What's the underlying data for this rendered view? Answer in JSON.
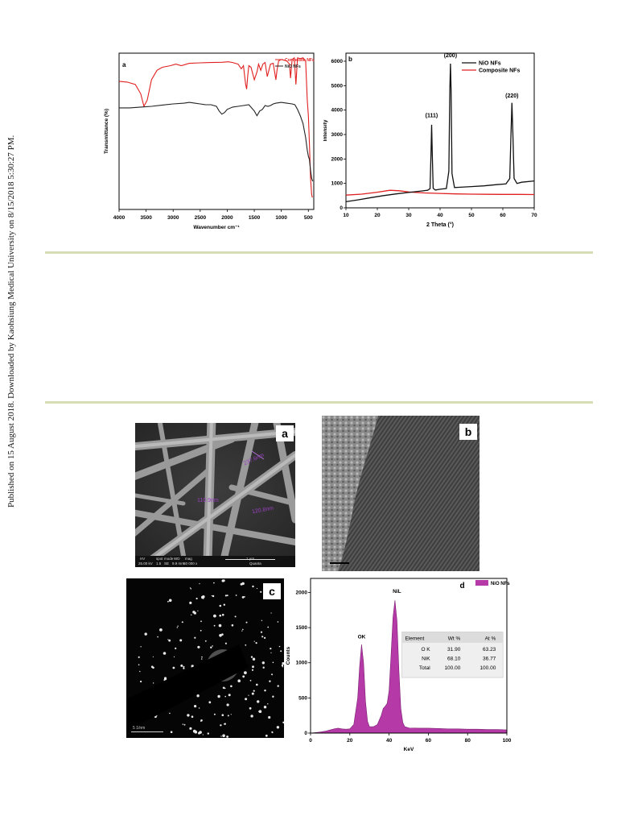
{
  "side_note": "Published on 15 August 2018. Downloaded by Kaohsiung Medical University on 8/15/2018 5:30:27 PM.",
  "panels": {
    "a": "a",
    "b": "b",
    "sem": "a",
    "hrtem": "b",
    "saed": "c",
    "edx": "d"
  },
  "chart_data": [
    {
      "type": "line",
      "panel": "a",
      "xlabel": "Wavenumber cm⁻¹",
      "ylabel": "Transmittance (%)",
      "xlim": [
        4000,
        400
      ],
      "x_ticks": [
        "4000",
        "3500",
        "3000",
        "2500",
        "2000",
        "1500",
        "1000",
        "500"
      ],
      "legend_position": "top-right",
      "series": [
        {
          "name": "Composite NFs",
          "color": "#e02020",
          "x": [
            4000,
            3850,
            3700,
            3600,
            3540,
            3480,
            3400,
            3300,
            3200,
            3050,
            2950,
            2850,
            2700,
            2500,
            2300,
            2100,
            1980,
            1900,
            1800,
            1740,
            1700,
            1660,
            1640,
            1620,
            1600,
            1560,
            1500,
            1450,
            1420,
            1380,
            1340,
            1300,
            1260,
            1200,
            1150,
            1100,
            1080,
            1050,
            1000,
            950,
            900,
            850,
            830,
            800,
            760,
            730,
            700,
            650,
            600,
            550,
            520,
            500,
            480,
            460,
            440,
            430,
            420
          ],
          "y": [
            82.0,
            81.5,
            80.0,
            74.0,
            66.0,
            70.0,
            83.0,
            89.0,
            91.0,
            92.0,
            93.0,
            92.0,
            93.5,
            93.8,
            94.0,
            94.2,
            94.5,
            94.0,
            93.0,
            90.0,
            92.0,
            80.0,
            77.0,
            86.0,
            92.0,
            91.0,
            83.0,
            88.0,
            93.0,
            89.0,
            93.0,
            94.0,
            85.0,
            93.0,
            93.5,
            83.0,
            89.0,
            95.0,
            96.0,
            95.5,
            95.0,
            93.0,
            84.0,
            96.0,
            97.0,
            80.0,
            97.0,
            96.5,
            97.0,
            95.0,
            70.0,
            60.0,
            42.0,
            20.0,
            10.0,
            8.0,
            8.0
          ]
        },
        {
          "name": "NiO NFs",
          "color": "#222222",
          "x": [
            4000,
            3800,
            3600,
            3400,
            3200,
            3000,
            2800,
            2700,
            2600,
            2500,
            2400,
            2300,
            2200,
            2150,
            2100,
            2050,
            2000,
            1900,
            1800,
            1700,
            1600,
            1500,
            1450,
            1400,
            1350,
            1300,
            1250,
            1200,
            1150,
            1100,
            1000,
            900,
            800,
            750,
            700,
            650,
            600,
            550,
            520,
            500,
            480,
            460,
            440,
            420
          ],
          "y": [
            65.0,
            65.0,
            65.5,
            66.0,
            66.8,
            67.5,
            68.0,
            68.5,
            68.0,
            67.5,
            67.0,
            67.0,
            66.0,
            63.0,
            61.0,
            62.0,
            64.0,
            65.5,
            66.0,
            66.5,
            67.0,
            63.0,
            60.0,
            63.0,
            64.0,
            66.5,
            66.0,
            66.5,
            67.5,
            68.0,
            68.5,
            68.0,
            67.5,
            67.0,
            64.0,
            60.0,
            55.0,
            46.0,
            38.0,
            34.0,
            32.0,
            25.0,
            20.0,
            18.0
          ]
        }
      ]
    },
    {
      "type": "line",
      "panel": "b",
      "xlabel": "2 Theta (°)",
      "ylabel": "Intensity",
      "xlim": [
        10,
        70
      ],
      "ylim": [
        0,
        6000
      ],
      "x_ticks": [
        "10",
        "20",
        "30",
        "40",
        "50",
        "60",
        "70"
      ],
      "y_ticks": [
        "0",
        "1000",
        "2000",
        "3000",
        "4000",
        "5000",
        "6000"
      ],
      "legend_position": "top-right",
      "annotations": [
        {
          "text": "(111)",
          "x": 37.3,
          "y": 3650
        },
        {
          "text": "(200)",
          "x": 43.3,
          "y": 6100
        },
        {
          "text": "(220)",
          "x": 62.9,
          "y": 4450
        }
      ],
      "series": [
        {
          "name": "NiO NFs",
          "color": "#111111",
          "x": [
            10,
            14,
            18,
            22,
            26,
            30,
            34,
            36,
            36.8,
            37.1,
            37.3,
            37.5,
            37.8,
            38.5,
            40,
            42,
            42.8,
            43.1,
            43.3,
            43.5,
            43.8,
            44.6,
            46,
            50,
            54,
            58,
            61,
            62.2,
            62.6,
            62.9,
            63.2,
            63.6,
            64.5,
            66,
            70
          ],
          "y": [
            250,
            330,
            420,
            500,
            570,
            630,
            690,
            720,
            780,
            2200,
            3400,
            2200,
            800,
            730,
            760,
            790,
            1500,
            4800,
            5900,
            4800,
            1400,
            830,
            840,
            870,
            900,
            950,
            980,
            1200,
            3000,
            4300,
            3000,
            1200,
            1000,
            1050,
            1100
          ]
        },
        {
          "name": "Composite NFs",
          "color": "#e02020",
          "x": [
            10,
            15,
            20,
            24,
            27,
            30,
            35,
            40,
            45,
            50,
            55,
            60,
            65,
            70
          ],
          "y": [
            520,
            560,
            640,
            720,
            700,
            650,
            610,
            590,
            570,
            560,
            555,
            550,
            550,
            545
          ]
        }
      ]
    },
    {
      "type": "area",
      "panel": "d",
      "xlabel": "KeV",
      "ylabel": "Counts",
      "xlim": [
        0,
        100
      ],
      "ylim": [
        0,
        2200
      ],
      "x_ticks": [
        "0",
        "20",
        "40",
        "60",
        "80",
        "100"
      ],
      "y_ticks": [
        "0",
        "500",
        "1000",
        "1500",
        "2000"
      ],
      "legend_position": "top-right",
      "annotations": [
        {
          "text": "OK",
          "x": 26,
          "y": 1300
        },
        {
          "text": "NiL",
          "x": 44,
          "y": 1950
        }
      ],
      "table": {
        "headers": [
          "Element",
          "Wt %",
          "At %"
        ],
        "rows": [
          [
            "O K",
            "31.90",
            "63.23"
          ],
          [
            "NiK",
            "68.10",
            "36.77"
          ],
          [
            "Total",
            "100.00",
            "100.00"
          ]
        ]
      },
      "series": [
        {
          "name": "NiO NFs",
          "color": "#b53aa8",
          "x": [
            0,
            5,
            8,
            10,
            12,
            14,
            16,
            18,
            20,
            22,
            24,
            25,
            26,
            27,
            28,
            29,
            30,
            32,
            34,
            36,
            37,
            38,
            39,
            40,
            41,
            42,
            43,
            44,
            45,
            46,
            47,
            48,
            50,
            55,
            60,
            65,
            70,
            75,
            80,
            85,
            90,
            95,
            100
          ],
          "y": [
            0,
            15,
            30,
            45,
            60,
            70,
            60,
            55,
            60,
            120,
            500,
            950,
            1260,
            1000,
            450,
            170,
            90,
            90,
            120,
            250,
            350,
            380,
            420,
            600,
            1100,
            1650,
            1890,
            1600,
            900,
            350,
            150,
            90,
            75,
            70,
            70,
            65,
            60,
            60,
            55,
            55,
            50,
            50,
            45
          ]
        }
      ]
    }
  ],
  "sem": {
    "labels": [
      "237.6nm",
      "110.9nm",
      "120.8nm"
    ],
    "info_bar": [
      "HV",
      "spot",
      "mode",
      "WD",
      "mag"
    ],
    "info_values": [
      "25.00 kV",
      "1.5",
      "SE",
      "9.9 mm",
      "50 000 x"
    ],
    "scale": "1 µm",
    "brand": "Quanta"
  },
  "saed": {
    "scale": "5 1/nm"
  }
}
